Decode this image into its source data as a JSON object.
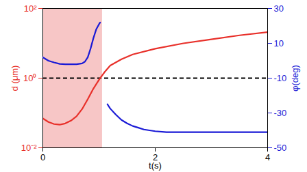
{
  "chart_data": {
    "type": "line",
    "x_label": "t(s)",
    "y_label": "d (μm)",
    "y2_label": "φ(deg)",
    "xlim": [
      0,
      4
    ],
    "xticks": [
      0,
      2,
      4
    ],
    "log": "y",
    "ylim": [
      0.01,
      100
    ],
    "yticks": [
      {
        "value": 0.01,
        "label": "10⁻²"
      },
      {
        "value": 1,
        "label": "10⁰"
      },
      {
        "value": 100,
        "label": "10²"
      }
    ],
    "y2lim": [
      -50,
      30
    ],
    "y2ticks": [
      -50,
      -30,
      -10,
      10,
      30
    ],
    "shaded_region": {
      "x": [
        0,
        1.06
      ],
      "color": "#f7c6c6"
    },
    "reference_line": {
      "y": 1,
      "line_style": "dashed",
      "color": "#000000"
    },
    "series": [
      {
        "color": "#e8302a",
        "x": [
          0,
          0.1,
          0.2,
          0.3,
          0.4,
          0.5,
          0.6,
          0.7,
          0.8,
          0.9,
          1.0,
          1.1,
          1.2,
          1.4,
          1.6,
          2.0,
          2.5,
          3.0,
          3.5,
          4.0
        ],
        "values": [
          0.07,
          0.055,
          0.048,
          0.046,
          0.05,
          0.06,
          0.08,
          0.13,
          0.25,
          0.5,
          0.9,
          1.5,
          2.3,
          3.5,
          4.8,
          7,
          10,
          13,
          17,
          21
        ]
      },
      {
        "color": "#1a1ad6",
        "axis": "y2",
        "x": [
          0,
          0.1,
          0.2,
          0.3,
          0.4,
          0.5,
          0.6,
          0.7,
          0.75,
          0.8,
          0.85,
          0.9,
          0.95,
          1.0,
          1.02
        ],
        "values": [
          2,
          0,
          -1,
          -1.8,
          -2,
          -2,
          -2,
          -1.5,
          -0.5,
          2,
          7,
          13,
          18,
          21,
          22
        ]
      },
      {
        "color": "#1a1ad6",
        "axis": "y2",
        "x": [
          1.15,
          1.2,
          1.3,
          1.4,
          1.5,
          1.6,
          1.7,
          1.8,
          1.9,
          2.0,
          2.2,
          2.5,
          3.0,
          3.5,
          4.0
        ],
        "values": [
          -25,
          -27.5,
          -31,
          -34,
          -36,
          -37.5,
          -38.5,
          -39.5,
          -40,
          -40.5,
          -41,
          -41,
          -41,
          -41,
          -41
        ]
      }
    ]
  }
}
